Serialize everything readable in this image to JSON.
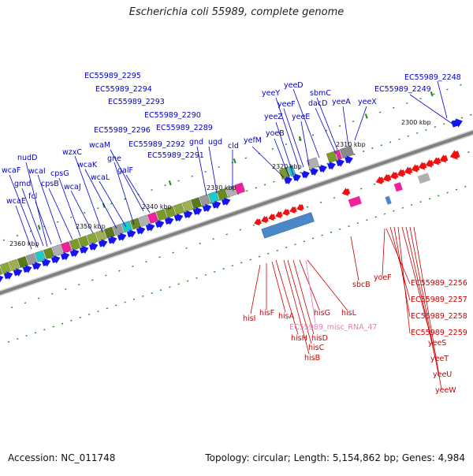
{
  "title": "Escherichia coli 55989, complete genome",
  "footer": {
    "accession": "Accession: NC_011748",
    "summary": "Topology: circular; Length: 5,154,862 bp; Genes: 4,984"
  },
  "colors": {
    "forward": "#0000cc",
    "reverse": "#cc0000",
    "misc_rna": "#ee77bb",
    "forward_arrow": "#1414f0",
    "reverse_arrow": "#f01010",
    "backbone": "#808080"
  },
  "kbp_marks": [
    "2300 kbp",
    "2310 kbp",
    "2320 kbp",
    "2330 kbp",
    "2340 kbp",
    "2350 kbp",
    "2360 kbp"
  ],
  "genes_forward": [
    "EC55989_2248",
    "EC55989_2249",
    "yeeX",
    "yeeA",
    "sbmC",
    "dacD",
    "yeeD",
    "yeeY",
    "yeeF",
    "yeeE",
    "yeeZ",
    "yoeB",
    "yefM",
    "EC55989_2289",
    "EC55989_2290",
    "EC55989_2291",
    "EC55989_2292",
    "EC55989_2293",
    "EC55989_2294",
    "EC55989_2295",
    "EC55989_2296",
    "cld",
    "ugd",
    "gnd",
    "galF",
    "gne",
    "wcaL",
    "wcaM",
    "wcaK",
    "wzxC",
    "wcaJ",
    "cpsG",
    "cpsB",
    "wcaI",
    "fcl",
    "gmd",
    "nudD",
    "wcaF",
    "wcaE"
  ],
  "genes_reverse": [
    "EC55989_2256",
    "EC55989_2257",
    "EC55989_2258",
    "EC55989_2259",
    "yeeS",
    "yeeT",
    "yeeU",
    "yeeW",
    "yoeF",
    "sbcB",
    "hisL",
    "hisG",
    "hisD",
    "hisC",
    "hisB",
    "hisH",
    "hisA",
    "hisF",
    "hisI"
  ],
  "genes_misc": [
    "EC55989_misc_RNA_47"
  ]
}
